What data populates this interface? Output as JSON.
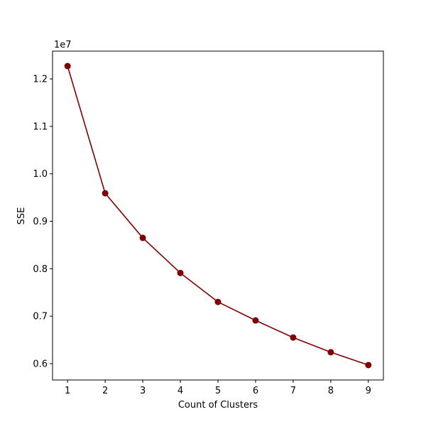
{
  "chart_data": {
    "type": "line",
    "xlabel": "Count of Clusters",
    "ylabel": "SSE",
    "y_offset_label": "1e7",
    "x": [
      1,
      2,
      3,
      4,
      5,
      6,
      7,
      8,
      9
    ],
    "series": [
      {
        "color": "#800000",
        "values": [
          1.227,
          0.959,
          0.865,
          0.791,
          0.73,
          0.691,
          0.655,
          0.624,
          0.597
        ]
      }
    ],
    "xlim": [
      0.6,
      9.4
    ],
    "xticks": [
      1,
      2,
      3,
      4,
      5,
      6,
      7,
      8,
      9
    ],
    "ylim": [
      0.5655,
      1.2585
    ],
    "yticks": [
      0.6,
      0.7,
      0.8,
      0.9,
      {
        "value": 1.0,
        "label": "1.0"
      },
      1.1,
      1.2
    ],
    "grid": false
  }
}
